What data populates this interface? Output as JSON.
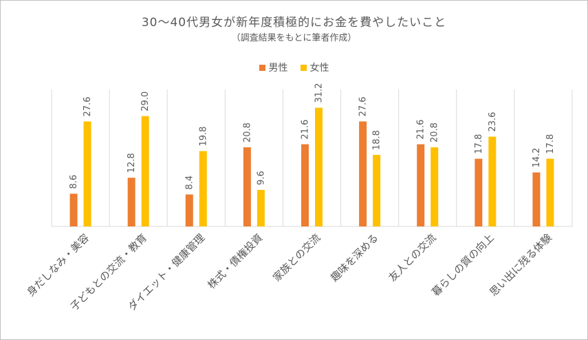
{
  "chart_data": {
    "type": "bar",
    "title": "30～40代男女が新年度積極的にお金を費やしたいこと",
    "subtitle": "（調査結果をもとに筆者作成）",
    "categories": [
      "身だしなみ・美容",
      "子どもとの交流・教育",
      "ダイエット・健康管理",
      "株式・債権投資",
      "家族との交流",
      "趣味を深める",
      "友人との交流",
      "暮らしの質の向上",
      "思い出に残る体験"
    ],
    "series": [
      {
        "name": "男性",
        "color": "#ED7D31",
        "values": [
          8.6,
          12.8,
          8.4,
          20.8,
          21.6,
          27.6,
          21.6,
          17.8,
          14.2
        ]
      },
      {
        "name": "女性",
        "color": "#FFC000",
        "values": [
          27.6,
          29.0,
          19.8,
          9.6,
          31.2,
          18.8,
          20.8,
          23.6,
          17.8
        ]
      }
    ],
    "ylim": [
      0,
      36
    ],
    "xlabel": "",
    "ylabel": "",
    "legend_position": "top",
    "grid": "vertical category separators"
  }
}
